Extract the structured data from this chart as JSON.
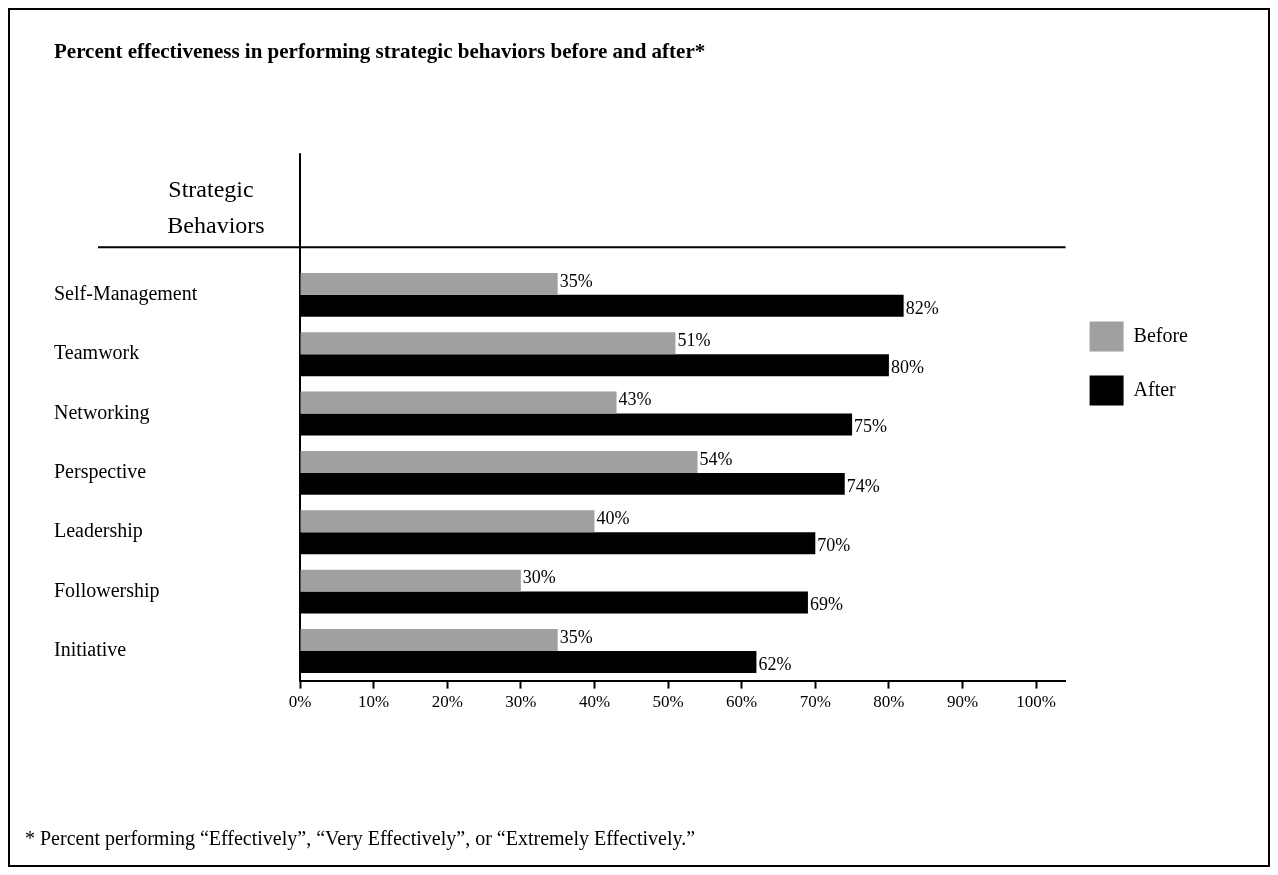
{
  "chart_data": {
    "type": "bar",
    "orientation": "horizontal",
    "title": "Percent effectiveness in performing strategic behaviors before and after*",
    "ylabel": "Strategic Behaviors",
    "categories": [
      "Self-Management",
      "Teamwork",
      "Networking",
      "Perspective",
      "Leadership",
      "Followership",
      "Initiative"
    ],
    "series": [
      {
        "name": "Before",
        "color": "#a0a0a0",
        "values": [
          35,
          51,
          43,
          54,
          40,
          30,
          35
        ],
        "value_labels": [
          "35%",
          "51%",
          "43%",
          "54%",
          "40%",
          "30%",
          "35%"
        ]
      },
      {
        "name": "After",
        "color": "#000000",
        "values": [
          82,
          80,
          75,
          74,
          70,
          69,
          62
        ],
        "value_labels": [
          "82%",
          "80%",
          "75%",
          "74%",
          "70%",
          "69%",
          "62%"
        ]
      }
    ],
    "xlim": [
      0,
      104
    ],
    "xticks": [
      {
        "value": 0,
        "label": "0%"
      },
      {
        "value": 10,
        "label": "10%"
      },
      {
        "value": 20,
        "label": "20%"
      },
      {
        "value": 30,
        "label": "30%"
      },
      {
        "value": 40,
        "label": "40%"
      },
      {
        "value": 50,
        "label": "50%"
      },
      {
        "value": 60,
        "label": "60%"
      },
      {
        "value": 70,
        "label": "70%"
      },
      {
        "value": 80,
        "label": "80%"
      },
      {
        "value": 90,
        "label": "90%"
      },
      {
        "value": 100,
        "label": "100%"
      }
    ],
    "grid": false,
    "legend": "right",
    "annotations": [
      "* Percent performing “Effectively”, “Very Effectively”, or “Extremely Effectively.”"
    ]
  }
}
